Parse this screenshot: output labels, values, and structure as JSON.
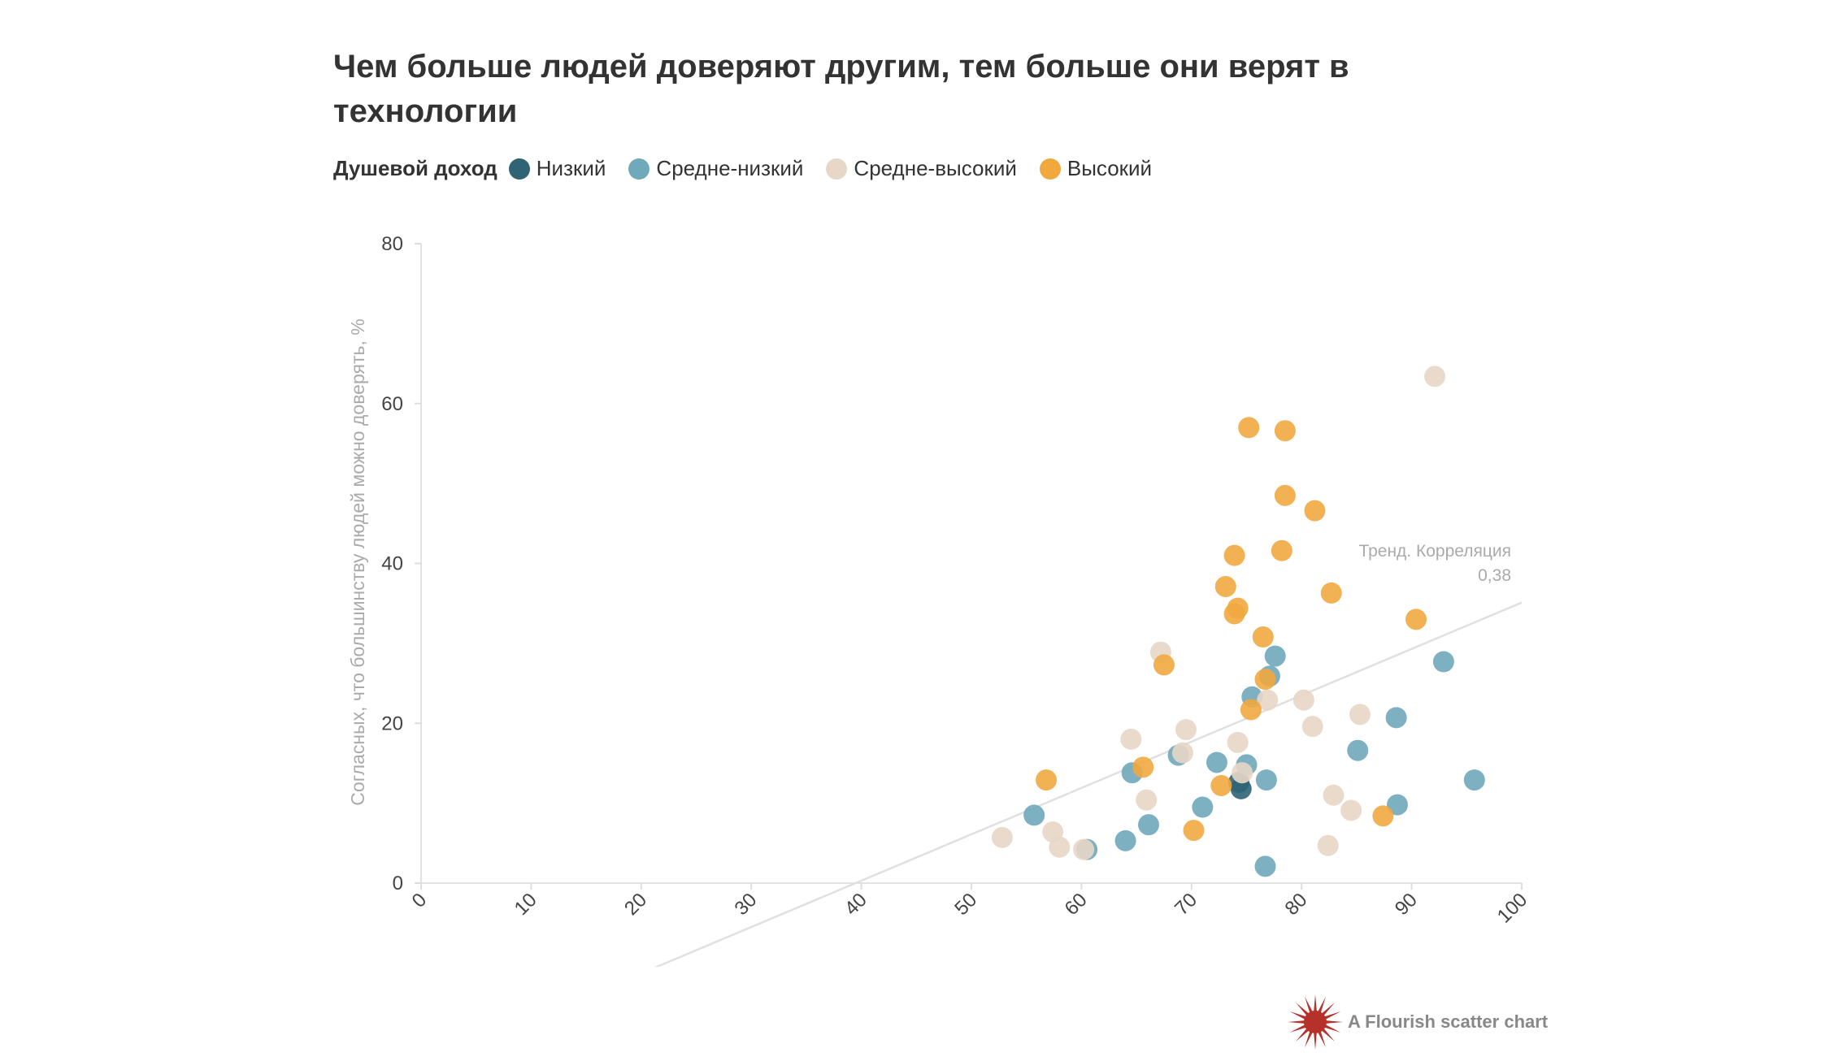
{
  "title": "Чем больше людей доверяют другим, тем больше они верят в технологии",
  "legend": {
    "title": "Душевой доход",
    "items": [
      {
        "label": "Низкий",
        "color": "#2f6475"
      },
      {
        "label": "Средне-низкий",
        "color": "#6fa9bb"
      },
      {
        "label": "Средне-высокий",
        "color": "#e8d6c6"
      },
      {
        "label": "Высокий",
        "color": "#f1a93f"
      }
    ]
  },
  "credit": "A Flourish scatter chart",
  "chart_data": {
    "type": "scatter",
    "ylabel": "Согласных, что большинству людей можно доверять, %",
    "xlabel": "",
    "xlim": [
      0,
      100
    ],
    "ylim": [
      0,
      80
    ],
    "xticks": [
      "0",
      "10",
      "20",
      "30",
      "40",
      "50",
      "60",
      "70",
      "80",
      "90",
      "100"
    ],
    "yticks": [
      "0",
      "20",
      "40",
      "60",
      "80"
    ],
    "trend": {
      "label": "Тренд. Корреляция",
      "value": "0,38",
      "points": [
        [
          20,
          -11.3
        ],
        [
          100,
          35.1
        ]
      ]
    },
    "series": [
      {
        "name": "Низкий",
        "color": "#2f6475",
        "points": [
          [
            74.3,
            12.6
          ],
          [
            74.5,
            11.8
          ]
        ]
      },
      {
        "name": "Средне-низкий",
        "color": "#6fa9bb",
        "points": [
          [
            92.9,
            27.7
          ],
          [
            77.6,
            28.4
          ],
          [
            77.1,
            25.9
          ],
          [
            75.5,
            23.3
          ],
          [
            88.6,
            20.7
          ],
          [
            85.1,
            16.6
          ],
          [
            68.8,
            16.0
          ],
          [
            72.3,
            15.1
          ],
          [
            75.0,
            14.8
          ],
          [
            64.6,
            13.8
          ],
          [
            76.8,
            12.9
          ],
          [
            95.7,
            12.9
          ],
          [
            55.7,
            8.5
          ],
          [
            71.0,
            9.5
          ],
          [
            88.7,
            9.8
          ],
          [
            66.1,
            7.3
          ],
          [
            64.0,
            5.3
          ],
          [
            60.5,
            4.2
          ],
          [
            76.7,
            2.1
          ]
        ]
      },
      {
        "name": "Средне-высокий",
        "color": "#e8d6c6",
        "points": [
          [
            92.1,
            63.4
          ],
          [
            67.2,
            28.9
          ],
          [
            76.9,
            22.9
          ],
          [
            80.2,
            22.9
          ],
          [
            85.3,
            21.1
          ],
          [
            81.0,
            19.6
          ],
          [
            69.5,
            19.2
          ],
          [
            64.5,
            18.0
          ],
          [
            74.2,
            17.6
          ],
          [
            69.2,
            16.3
          ],
          [
            74.6,
            13.8
          ],
          [
            65.9,
            10.4
          ],
          [
            82.9,
            11.0
          ],
          [
            84.5,
            9.1
          ],
          [
            57.4,
            6.4
          ],
          [
            52.8,
            5.7
          ],
          [
            58.0,
            4.5
          ],
          [
            60.2,
            4.2
          ],
          [
            82.4,
            4.7
          ]
        ]
      },
      {
        "name": "Высокий",
        "color": "#f1a93f",
        "points": [
          [
            75.2,
            57.0
          ],
          [
            78.5,
            56.6
          ],
          [
            78.5,
            48.5
          ],
          [
            81.2,
            46.6
          ],
          [
            73.9,
            41.0
          ],
          [
            78.2,
            41.6
          ],
          [
            73.1,
            37.1
          ],
          [
            82.7,
            36.3
          ],
          [
            74.2,
            34.4
          ],
          [
            73.9,
            33.7
          ],
          [
            90.4,
            33.0
          ],
          [
            76.5,
            30.8
          ],
          [
            67.5,
            27.3
          ],
          [
            76.7,
            25.5
          ],
          [
            75.4,
            21.7
          ],
          [
            65.6,
            14.5
          ],
          [
            56.8,
            12.9
          ],
          [
            72.7,
            12.2
          ],
          [
            70.2,
            6.6
          ],
          [
            87.4,
            8.4
          ]
        ]
      }
    ]
  }
}
